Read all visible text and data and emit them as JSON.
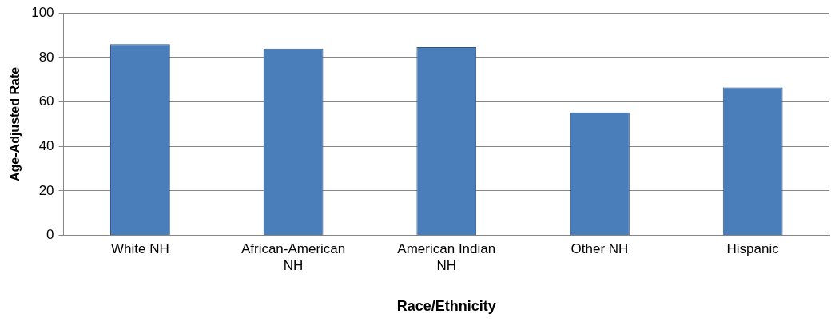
{
  "chart_data": {
    "type": "bar",
    "xlabel": "Race/Ethnicity",
    "ylabel": "Age-Adjusted Rate",
    "categories": [
      "White NH",
      "African-American NH",
      "American Indian NH",
      "Other NH",
      "Hispanic"
    ],
    "values": [
      86,
      84,
      84.6,
      55.3,
      66.5
    ],
    "color": "#4a7ebb",
    "ylim": [
      0,
      100
    ],
    "yticks": [
      0,
      20,
      40,
      60,
      80,
      100
    ],
    "grid": "y",
    "legend": false
  }
}
